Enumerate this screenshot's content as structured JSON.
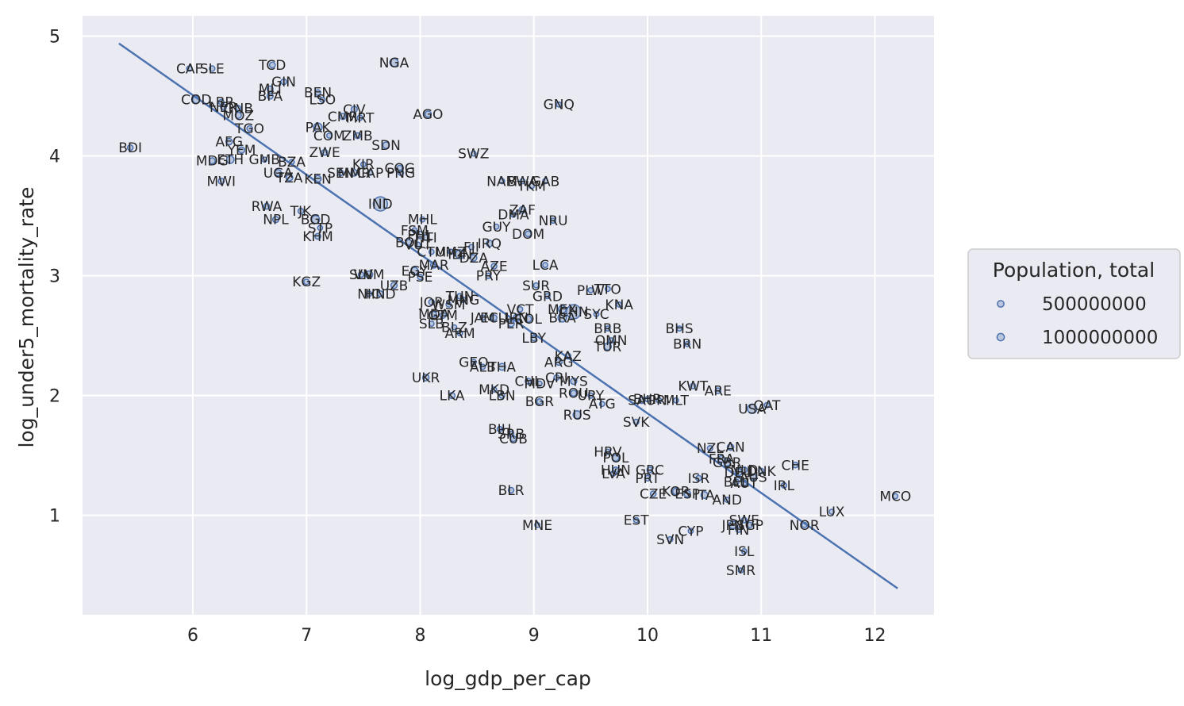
{
  "chart_data": {
    "type": "scatter",
    "title": "",
    "xlabel": "log_gdp_per_cap",
    "ylabel": "log_under5_mortality_rate",
    "xlim": [
      5.03,
      12.52
    ],
    "ylim": [
      0.17,
      5.17
    ],
    "xticks": [
      6,
      7,
      8,
      9,
      10,
      11,
      12
    ],
    "yticks": [
      1,
      2,
      3,
      4,
      5
    ],
    "grid": true,
    "point_color": "#4c72b0",
    "line_color": "#4c72b0",
    "size_unit": 10000000,
    "legend": {
      "title": "Population, total",
      "placement": "right",
      "entries": [
        {
          "label": "500000000",
          "value": 500000000
        },
        {
          "label": "1000000000",
          "value": 1000000000
        }
      ]
    },
    "regression_line": {
      "x": [
        5.35,
        12.2
      ],
      "y": [
        4.94,
        0.39
      ]
    },
    "points": [
      {
        "label": "CAF",
        "x": 5.97,
        "y": 4.73,
        "pop": 5
      },
      {
        "label": "SLE",
        "x": 6.17,
        "y": 4.73,
        "pop": 8
      },
      {
        "label": "TCD",
        "x": 6.7,
        "y": 4.76,
        "pop": 16
      },
      {
        "label": "NGA",
        "x": 7.77,
        "y": 4.78,
        "pop": 200
      },
      {
        "label": "GIN",
        "x": 6.8,
        "y": 4.62,
        "pop": 13
      },
      {
        "label": "MLI",
        "x": 6.68,
        "y": 4.56,
        "pop": 20
      },
      {
        "label": "BFA",
        "x": 6.68,
        "y": 4.5,
        "pop": 20
      },
      {
        "label": "BEN",
        "x": 7.1,
        "y": 4.53,
        "pop": 12
      },
      {
        "label": "LSO",
        "x": 7.14,
        "y": 4.47,
        "pop": 2
      },
      {
        "label": "CIV",
        "x": 7.42,
        "y": 4.39,
        "pop": 26
      },
      {
        "label": "CMR",
        "x": 7.32,
        "y": 4.33,
        "pop": 26
      },
      {
        "label": "MRT",
        "x": 7.47,
        "y": 4.32,
        "pop": 5
      },
      {
        "label": "AGO",
        "x": 8.07,
        "y": 4.35,
        "pop": 32
      },
      {
        "label": "GNQ",
        "x": 9.22,
        "y": 4.43,
        "pop": 1
      },
      {
        "label": "COD",
        "x": 6.03,
        "y": 4.47,
        "pop": 87
      },
      {
        "label": "LBR",
        "x": 6.25,
        "y": 4.45,
        "pop": 5
      },
      {
        "label": "NER",
        "x": 6.27,
        "y": 4.41,
        "pop": 23
      },
      {
        "label": "GNB",
        "x": 6.4,
        "y": 4.4,
        "pop": 2
      },
      {
        "label": "MOZ",
        "x": 6.4,
        "y": 4.34,
        "pop": 30
      },
      {
        "label": "TGO",
        "x": 6.5,
        "y": 4.23,
        "pop": 8
      },
      {
        "label": "PAK",
        "x": 7.1,
        "y": 4.24,
        "pop": 216
      },
      {
        "label": "COM",
        "x": 7.2,
        "y": 4.17,
        "pop": 1
      },
      {
        "label": "ZMB",
        "x": 7.45,
        "y": 4.17,
        "pop": 18
      },
      {
        "label": "SDN",
        "x": 7.7,
        "y": 4.09,
        "pop": 43
      },
      {
        "label": "BDI",
        "x": 5.45,
        "y": 4.07,
        "pop": 11
      },
      {
        "label": "AFG",
        "x": 6.32,
        "y": 4.12,
        "pop": 38
      },
      {
        "label": "YEM",
        "x": 6.43,
        "y": 4.05,
        "pop": 29
      },
      {
        "label": "ZWE",
        "x": 7.16,
        "y": 4.03,
        "pop": 15
      },
      {
        "label": "SWZ",
        "x": 8.47,
        "y": 4.02,
        "pop": 1
      },
      {
        "label": "MDG",
        "x": 6.17,
        "y": 3.96,
        "pop": 27
      },
      {
        "label": "ETH",
        "x": 6.33,
        "y": 3.97,
        "pop": 112
      },
      {
        "label": "GMB",
        "x": 6.63,
        "y": 3.97,
        "pop": 2
      },
      {
        "label": "BZA",
        "x": 6.87,
        "y": 3.95,
        "pop": 1
      },
      {
        "label": "KIR",
        "x": 7.5,
        "y": 3.93,
        "pop": 1
      },
      {
        "label": "COG",
        "x": 7.82,
        "y": 3.9,
        "pop": 5
      },
      {
        "label": "UGA",
        "x": 6.75,
        "y": 3.86,
        "pop": 44
      },
      {
        "label": "SEN",
        "x": 7.3,
        "y": 3.86,
        "pop": 16
      },
      {
        "label": "MMR",
        "x": 7.42,
        "y": 3.86,
        "pop": 54
      },
      {
        "label": "CAP",
        "x": 7.56,
        "y": 3.86,
        "pop": 1
      },
      {
        "label": "PNG",
        "x": 7.83,
        "y": 3.86,
        "pop": 9
      },
      {
        "label": "TZA",
        "x": 6.85,
        "y": 3.82,
        "pop": 58
      },
      {
        "label": "KEN",
        "x": 7.1,
        "y": 3.81,
        "pop": 53
      },
      {
        "label": "MWI",
        "x": 6.25,
        "y": 3.79,
        "pop": 19
      },
      {
        "label": "NAM",
        "x": 8.72,
        "y": 3.79,
        "pop": 3
      },
      {
        "label": "BWA",
        "x": 8.9,
        "y": 3.79,
        "pop": 2
      },
      {
        "label": "GAB",
        "x": 9.1,
        "y": 3.79,
        "pop": 2
      },
      {
        "label": "TKM",
        "x": 8.98,
        "y": 3.75,
        "pop": 6
      },
      {
        "label": "IND",
        "x": 7.65,
        "y": 3.6,
        "pop": 1366
      },
      {
        "label": "RWA",
        "x": 6.65,
        "y": 3.58,
        "pop": 13
      },
      {
        "label": "TJK",
        "x": 6.95,
        "y": 3.54,
        "pop": 9
      },
      {
        "label": "ZAF",
        "x": 8.9,
        "y": 3.55,
        "pop": 59
      },
      {
        "label": "DMA",
        "x": 8.82,
        "y": 3.51,
        "pop": 1
      },
      {
        "label": "NPL",
        "x": 6.73,
        "y": 3.47,
        "pop": 29
      },
      {
        "label": "BGD",
        "x": 7.08,
        "y": 3.47,
        "pop": 163
      },
      {
        "label": "MHL",
        "x": 8.02,
        "y": 3.47,
        "pop": 1
      },
      {
        "label": "NRU",
        "x": 9.17,
        "y": 3.46,
        "pop": 1
      },
      {
        "label": "STP",
        "x": 7.12,
        "y": 3.4,
        "pop": 1
      },
      {
        "label": "FSM",
        "x": 7.95,
        "y": 3.38,
        "pop": 1
      },
      {
        "label": "GUY",
        "x": 8.67,
        "y": 3.41,
        "pop": 1
      },
      {
        "label": "PHL",
        "x": 8.0,
        "y": 3.34,
        "pop": 108
      },
      {
        "label": "DOM",
        "x": 8.95,
        "y": 3.35,
        "pop": 11
      },
      {
        "label": "HTI",
        "x": 8.05,
        "y": 3.32,
        "pop": 11
      },
      {
        "label": "KHM",
        "x": 7.1,
        "y": 3.33,
        "pop": 16
      },
      {
        "label": "BOL",
        "x": 7.9,
        "y": 3.28,
        "pop": 12
      },
      {
        "label": "IRQ",
        "x": 8.61,
        "y": 3.27,
        "pop": 39
      },
      {
        "label": "VUT",
        "x": 7.98,
        "y": 3.26,
        "pop": 1
      },
      {
        "label": "FJI",
        "x": 8.45,
        "y": 3.24,
        "pop": 1
      },
      {
        "label": "CTM",
        "x": 8.1,
        "y": 3.2,
        "pop": 1
      },
      {
        "label": "UMZ",
        "x": 8.27,
        "y": 3.2,
        "pop": 1
      },
      {
        "label": "IDN",
        "x": 8.35,
        "y": 3.18,
        "pop": 270
      },
      {
        "label": "DZA",
        "x": 8.47,
        "y": 3.15,
        "pop": 43
      },
      {
        "label": "LCA",
        "x": 9.1,
        "y": 3.09,
        "pop": 1
      },
      {
        "label": "AZE",
        "x": 8.65,
        "y": 3.08,
        "pop": 10
      },
      {
        "label": "MAR",
        "x": 8.12,
        "y": 3.09,
        "pop": 36
      },
      {
        "label": "EGY",
        "x": 7.95,
        "y": 3.04,
        "pop": 100
      },
      {
        "label": "PSE",
        "x": 8.0,
        "y": 2.99,
        "pop": 5
      },
      {
        "label": "PRY",
        "x": 8.6,
        "y": 3.0,
        "pop": 7
      },
      {
        "label": "SLV",
        "x": 7.48,
        "y": 3.01,
        "pop": 6
      },
      {
        "label": "VNM",
        "x": 7.55,
        "y": 3.01,
        "pop": 96
      },
      {
        "label": "KGZ",
        "x": 7.0,
        "y": 2.95,
        "pop": 6
      },
      {
        "label": "UZB",
        "x": 7.77,
        "y": 2.92,
        "pop": 33
      },
      {
        "label": "SUR",
        "x": 9.02,
        "y": 2.92,
        "pop": 1
      },
      {
        "label": "PLW",
        "x": 9.5,
        "y": 2.88,
        "pop": 1
      },
      {
        "label": "TTO",
        "x": 9.65,
        "y": 2.89,
        "pop": 1
      },
      {
        "label": "NIC",
        "x": 7.55,
        "y": 2.85,
        "pop": 7
      },
      {
        "label": "HND",
        "x": 7.65,
        "y": 2.85,
        "pop": 10
      },
      {
        "label": "GRD",
        "x": 9.12,
        "y": 2.83,
        "pop": 1
      },
      {
        "label": "TUN",
        "x": 8.35,
        "y": 2.83,
        "pop": 12
      },
      {
        "label": "MNG",
        "x": 8.38,
        "y": 2.8,
        "pop": 3
      },
      {
        "label": "JOR",
        "x": 8.1,
        "y": 2.78,
        "pop": 10
      },
      {
        "label": "WSM",
        "x": 8.25,
        "y": 2.76,
        "pop": 1
      },
      {
        "label": "KNA",
        "x": 9.75,
        "y": 2.76,
        "pop": 1
      },
      {
        "label": "VCT",
        "x": 8.88,
        "y": 2.72,
        "pop": 1
      },
      {
        "label": "MEX",
        "x": 9.25,
        "y": 2.72,
        "pop": 128
      },
      {
        "label": "BRA",
        "x": 9.25,
        "y": 2.65,
        "pop": 211
      },
      {
        "label": "CHN",
        "x": 9.35,
        "y": 2.7,
        "pop": 1398
      },
      {
        "label": "SYC",
        "x": 9.55,
        "y": 2.68,
        "pop": 1
      },
      {
        "label": "MDA",
        "x": 8.12,
        "y": 2.68,
        "pop": 3
      },
      {
        "label": "GTM",
        "x": 8.2,
        "y": 2.67,
        "pop": 17
      },
      {
        "label": "JAM",
        "x": 8.55,
        "y": 2.65,
        "pop": 3
      },
      {
        "label": "ECU",
        "x": 8.65,
        "y": 2.65,
        "pop": 17
      },
      {
        "label": "IRN",
        "x": 8.85,
        "y": 2.65,
        "pop": 83
      },
      {
        "label": "COL",
        "x": 8.95,
        "y": 2.64,
        "pop": 50
      },
      {
        "label": "SLB",
        "x": 8.1,
        "y": 2.6,
        "pop": 1
      },
      {
        "label": "PER",
        "x": 8.8,
        "y": 2.6,
        "pop": 32
      },
      {
        "label": "BLZ",
        "x": 8.3,
        "y": 2.57,
        "pop": 1
      },
      {
        "label": "ARM",
        "x": 8.35,
        "y": 2.52,
        "pop": 3
      },
      {
        "label": "BRB",
        "x": 9.65,
        "y": 2.56,
        "pop": 1
      },
      {
        "label": "BHS",
        "x": 10.28,
        "y": 2.56,
        "pop": 1
      },
      {
        "label": "LBY",
        "x": 9.0,
        "y": 2.48,
        "pop": 7
      },
      {
        "label": "OMN",
        "x": 9.68,
        "y": 2.46,
        "pop": 5
      },
      {
        "label": "BRN",
        "x": 10.35,
        "y": 2.43,
        "pop": 1
      },
      {
        "label": "TUR",
        "x": 9.65,
        "y": 2.41,
        "pop": 83
      },
      {
        "label": "KAZ",
        "x": 9.3,
        "y": 2.33,
        "pop": 18
      },
      {
        "label": "ARG",
        "x": 9.22,
        "y": 2.28,
        "pop": 45
      },
      {
        "label": "GEO",
        "x": 8.47,
        "y": 2.28,
        "pop": 4
      },
      {
        "label": "ALB",
        "x": 8.55,
        "y": 2.24,
        "pop": 3
      },
      {
        "label": "THA",
        "x": 8.72,
        "y": 2.24,
        "pop": 70
      },
      {
        "label": "UKR",
        "x": 8.05,
        "y": 2.15,
        "pop": 44
      },
      {
        "label": "CHL",
        "x": 8.95,
        "y": 2.12,
        "pop": 19
      },
      {
        "label": "CRI",
        "x": 9.2,
        "y": 2.15,
        "pop": 5
      },
      {
        "label": "MDV",
        "x": 9.05,
        "y": 2.1,
        "pop": 1
      },
      {
        "label": "MYS",
        "x": 9.35,
        "y": 2.12,
        "pop": 32
      },
      {
        "label": "KWT",
        "x": 10.4,
        "y": 2.08,
        "pop": 4
      },
      {
        "label": "ARE",
        "x": 10.62,
        "y": 2.04,
        "pop": 10
      },
      {
        "label": "MKD",
        "x": 8.65,
        "y": 2.05,
        "pop": 2
      },
      {
        "label": "LBN",
        "x": 8.72,
        "y": 2.0,
        "pop": 7
      },
      {
        "label": "LKA",
        "x": 8.28,
        "y": 2.0,
        "pop": 22
      },
      {
        "label": "ROU",
        "x": 9.35,
        "y": 2.02,
        "pop": 19
      },
      {
        "label": "URY",
        "x": 9.5,
        "y": 2.0,
        "pop": 3
      },
      {
        "label": "SAU",
        "x": 9.95,
        "y": 1.96,
        "pop": 34
      },
      {
        "label": "BHR",
        "x": 10.0,
        "y": 1.97,
        "pop": 2
      },
      {
        "label": "PRI",
        "x": 10.1,
        "y": 1.96,
        "pop": 3
      },
      {
        "label": "MLT",
        "x": 10.25,
        "y": 1.96,
        "pop": 1
      },
      {
        "label": "BGR",
        "x": 9.05,
        "y": 1.95,
        "pop": 7
      },
      {
        "label": "ATG",
        "x": 9.6,
        "y": 1.93,
        "pop": 1
      },
      {
        "label": "USA",
        "x": 10.92,
        "y": 1.89,
        "pop": 328
      },
      {
        "label": "QAT",
        "x": 11.05,
        "y": 1.92,
        "pop": 3
      },
      {
        "label": "RUS",
        "x": 9.38,
        "y": 1.84,
        "pop": 144
      },
      {
        "label": "SVK",
        "x": 9.9,
        "y": 1.78,
        "pop": 5
      },
      {
        "label": "BIH",
        "x": 8.7,
        "y": 1.72,
        "pop": 3
      },
      {
        "label": "SRB",
        "x": 8.8,
        "y": 1.68,
        "pop": 7
      },
      {
        "label": "CUB",
        "x": 8.82,
        "y": 1.64,
        "pop": 11
      },
      {
        "label": "NZL",
        "x": 10.55,
        "y": 1.56,
        "pop": 5
      },
      {
        "label": "CAN",
        "x": 10.73,
        "y": 1.57,
        "pop": 38
      },
      {
        "label": "HRV",
        "x": 9.65,
        "y": 1.53,
        "pop": 4
      },
      {
        "label": "POL",
        "x": 9.72,
        "y": 1.48,
        "pop": 38
      },
      {
        "label": "FRA",
        "x": 10.65,
        "y": 1.47,
        "pop": 67
      },
      {
        "label": "GBR",
        "x": 10.7,
        "y": 1.44,
        "pop": 67
      },
      {
        "label": "CHE",
        "x": 11.3,
        "y": 1.42,
        "pop": 9
      },
      {
        "label": "HUN",
        "x": 9.72,
        "y": 1.38,
        "pop": 10
      },
      {
        "label": "GRC",
        "x": 10.02,
        "y": 1.38,
        "pop": 11
      },
      {
        "label": "LVA",
        "x": 9.7,
        "y": 1.35,
        "pop": 2
      },
      {
        "label": "NLD",
        "x": 10.85,
        "y": 1.38,
        "pop": 17
      },
      {
        "label": "DNK",
        "x": 11.0,
        "y": 1.37,
        "pop": 6
      },
      {
        "label": "DEU",
        "x": 10.8,
        "y": 1.36,
        "pop": 83
      },
      {
        "label": "PRT",
        "x": 10.0,
        "y": 1.31,
        "pop": 10
      },
      {
        "label": "ISR",
        "x": 10.45,
        "y": 1.31,
        "pop": 9
      },
      {
        "label": "AUS",
        "x": 10.93,
        "y": 1.32,
        "pop": 25
      },
      {
        "label": "BEL",
        "x": 10.78,
        "y": 1.28,
        "pop": 11
      },
      {
        "label": "AUT",
        "x": 10.85,
        "y": 1.27,
        "pop": 9
      },
      {
        "label": "IRL",
        "x": 11.2,
        "y": 1.25,
        "pop": 5
      },
      {
        "label": "BLR",
        "x": 8.8,
        "y": 1.21,
        "pop": 9
      },
      {
        "label": "KOR",
        "x": 10.25,
        "y": 1.2,
        "pop": 52
      },
      {
        "label": "ESP",
        "x": 10.35,
        "y": 1.18,
        "pop": 47
      },
      {
        "label": "ITA",
        "x": 10.5,
        "y": 1.17,
        "pop": 60
      },
      {
        "label": "CZE",
        "x": 10.05,
        "y": 1.18,
        "pop": 11
      },
      {
        "label": "AND",
        "x": 10.7,
        "y": 1.13,
        "pop": 1
      },
      {
        "label": "MCO",
        "x": 12.18,
        "y": 1.16,
        "pop": 1
      },
      {
        "label": "LUX",
        "x": 11.62,
        "y": 1.03,
        "pop": 1
      },
      {
        "label": "MNE",
        "x": 9.03,
        "y": 0.92,
        "pop": 1
      },
      {
        "label": "EST",
        "x": 9.9,
        "y": 0.96,
        "pop": 1
      },
      {
        "label": "SWE",
        "x": 10.85,
        "y": 0.96,
        "pop": 10
      },
      {
        "label": "SGP",
        "x": 10.9,
        "y": 0.92,
        "pop": 6
      },
      {
        "label": "JPN",
        "x": 10.75,
        "y": 0.92,
        "pop": 126
      },
      {
        "label": "NOR",
        "x": 11.38,
        "y": 0.92,
        "pop": 5
      },
      {
        "label": "FIN",
        "x": 10.8,
        "y": 0.88,
        "pop": 6
      },
      {
        "label": "CYP",
        "x": 10.38,
        "y": 0.87,
        "pop": 1
      },
      {
        "label": "SVN",
        "x": 10.2,
        "y": 0.8,
        "pop": 2
      },
      {
        "label": "ISL",
        "x": 10.85,
        "y": 0.7,
        "pop": 1
      },
      {
        "label": "SMR",
        "x": 10.82,
        "y": 0.54,
        "pop": 1
      }
    ]
  }
}
